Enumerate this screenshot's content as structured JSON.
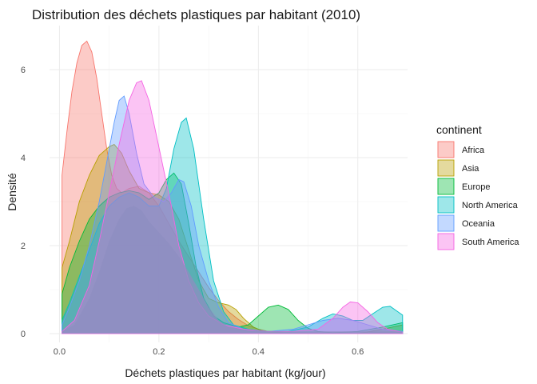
{
  "chart_data": {
    "type": "area",
    "subtype": "density",
    "title": "Distribution des déchets plastiques par habitant (2010)",
    "xlabel": "Déchets plastiques par habitant (kg/jour)",
    "ylabel": "Densité",
    "xlim": [
      -0.02,
      0.7
    ],
    "ylim": [
      -0.2,
      7.0
    ],
    "x_ticks": [
      0.0,
      0.2,
      0.4,
      0.6
    ],
    "x_tick_labels": [
      "0.0",
      "0.2",
      "0.4",
      "0.6"
    ],
    "y_ticks": [
      0,
      2,
      4,
      6
    ],
    "y_tick_labels": [
      "0",
      "2",
      "4",
      "6"
    ],
    "grid": true,
    "legend": {
      "title": "continent",
      "position": "right"
    },
    "series": [
      {
        "name": "Africa",
        "color": "#F8766D",
        "points": [
          [
            0.005,
            3.6
          ],
          [
            0.015,
            4.6
          ],
          [
            0.025,
            5.5
          ],
          [
            0.035,
            6.15
          ],
          [
            0.045,
            6.55
          ],
          [
            0.055,
            6.65
          ],
          [
            0.065,
            6.4
          ],
          [
            0.075,
            5.8
          ],
          [
            0.085,
            5.0
          ],
          [
            0.095,
            4.2
          ],
          [
            0.105,
            3.6
          ],
          [
            0.115,
            3.3
          ],
          [
            0.125,
            3.2
          ],
          [
            0.14,
            3.3
          ],
          [
            0.16,
            3.35
          ],
          [
            0.18,
            3.2
          ],
          [
            0.2,
            2.9
          ],
          [
            0.22,
            2.5
          ],
          [
            0.24,
            2.1
          ],
          [
            0.26,
            1.75
          ],
          [
            0.28,
            1.4
          ],
          [
            0.3,
            1.05
          ],
          [
            0.32,
            0.75
          ],
          [
            0.34,
            0.5
          ],
          [
            0.36,
            0.32
          ],
          [
            0.38,
            0.18
          ],
          [
            0.4,
            0.1
          ],
          [
            0.42,
            0.05
          ],
          [
            0.45,
            0.02
          ],
          [
            0.5,
            0.01
          ],
          [
            0.55,
            0.0
          ],
          [
            0.6,
            0.0
          ],
          [
            0.65,
            0.0
          ],
          [
            0.69,
            0.0
          ]
        ]
      },
      {
        "name": "Asia",
        "color": "#B79F00",
        "points": [
          [
            0.005,
            1.5
          ],
          [
            0.02,
            2.1
          ],
          [
            0.04,
            3.0
          ],
          [
            0.06,
            3.6
          ],
          [
            0.08,
            4.05
          ],
          [
            0.1,
            4.25
          ],
          [
            0.11,
            4.3
          ],
          [
            0.125,
            4.1
          ],
          [
            0.14,
            3.7
          ],
          [
            0.16,
            3.3
          ],
          [
            0.18,
            3.2
          ],
          [
            0.2,
            3.15
          ],
          [
            0.22,
            3.0
          ],
          [
            0.24,
            2.6
          ],
          [
            0.26,
            1.9
          ],
          [
            0.28,
            1.2
          ],
          [
            0.3,
            0.8
          ],
          [
            0.32,
            0.7
          ],
          [
            0.34,
            0.65
          ],
          [
            0.355,
            0.55
          ],
          [
            0.37,
            0.35
          ],
          [
            0.39,
            0.15
          ],
          [
            0.41,
            0.05
          ],
          [
            0.45,
            0.01
          ],
          [
            0.5,
            0.0
          ],
          [
            0.6,
            0.0
          ],
          [
            0.65,
            0.1
          ],
          [
            0.69,
            0.2
          ]
        ]
      },
      {
        "name": "Europe",
        "color": "#00BA38",
        "points": [
          [
            0.005,
            0.9
          ],
          [
            0.02,
            1.5
          ],
          [
            0.04,
            2.1
          ],
          [
            0.06,
            2.6
          ],
          [
            0.08,
            2.9
          ],
          [
            0.1,
            3.1
          ],
          [
            0.12,
            3.2
          ],
          [
            0.14,
            3.25
          ],
          [
            0.16,
            3.2
          ],
          [
            0.18,
            3.05
          ],
          [
            0.2,
            3.2
          ],
          [
            0.215,
            3.5
          ],
          [
            0.23,
            3.65
          ],
          [
            0.245,
            3.4
          ],
          [
            0.26,
            2.5
          ],
          [
            0.275,
            1.5
          ],
          [
            0.29,
            0.8
          ],
          [
            0.31,
            0.4
          ],
          [
            0.33,
            0.25
          ],
          [
            0.36,
            0.15
          ],
          [
            0.38,
            0.2
          ],
          [
            0.4,
            0.4
          ],
          [
            0.42,
            0.6
          ],
          [
            0.44,
            0.65
          ],
          [
            0.46,
            0.55
          ],
          [
            0.48,
            0.3
          ],
          [
            0.5,
            0.12
          ],
          [
            0.52,
            0.05
          ],
          [
            0.55,
            0.02
          ],
          [
            0.6,
            0.05
          ],
          [
            0.65,
            0.15
          ],
          [
            0.69,
            0.25
          ]
        ]
      },
      {
        "name": "North America",
        "color": "#00BFC4",
        "points": [
          [
            0.005,
            0.3
          ],
          [
            0.02,
            0.7
          ],
          [
            0.04,
            1.3
          ],
          [
            0.06,
            1.9
          ],
          [
            0.08,
            2.5
          ],
          [
            0.1,
            2.9
          ],
          [
            0.12,
            3.1
          ],
          [
            0.14,
            3.2
          ],
          [
            0.16,
            3.1
          ],
          [
            0.18,
            2.9
          ],
          [
            0.2,
            2.9
          ],
          [
            0.215,
            3.3
          ],
          [
            0.23,
            4.2
          ],
          [
            0.245,
            4.8
          ],
          [
            0.255,
            4.9
          ],
          [
            0.27,
            4.2
          ],
          [
            0.29,
            2.6
          ],
          [
            0.31,
            1.2
          ],
          [
            0.33,
            0.5
          ],
          [
            0.35,
            0.2
          ],
          [
            0.38,
            0.1
          ],
          [
            0.42,
            0.05
          ],
          [
            0.46,
            0.05
          ],
          [
            0.5,
            0.15
          ],
          [
            0.53,
            0.35
          ],
          [
            0.55,
            0.45
          ],
          [
            0.57,
            0.4
          ],
          [
            0.59,
            0.3
          ],
          [
            0.61,
            0.3
          ],
          [
            0.63,
            0.45
          ],
          [
            0.65,
            0.6
          ],
          [
            0.665,
            0.62
          ],
          [
            0.68,
            0.5
          ],
          [
            0.69,
            0.42
          ]
        ]
      },
      {
        "name": "Oceania",
        "color": "#619CFF",
        "points": [
          [
            0.005,
            0.2
          ],
          [
            0.02,
            0.6
          ],
          [
            0.04,
            1.2
          ],
          [
            0.06,
            2.0
          ],
          [
            0.08,
            3.0
          ],
          [
            0.095,
            3.9
          ],
          [
            0.11,
            4.8
          ],
          [
            0.12,
            5.3
          ],
          [
            0.13,
            5.4
          ],
          [
            0.14,
            5.0
          ],
          [
            0.155,
            4.1
          ],
          [
            0.17,
            3.4
          ],
          [
            0.19,
            3.1
          ],
          [
            0.21,
            3.0
          ],
          [
            0.225,
            3.2
          ],
          [
            0.24,
            3.5
          ],
          [
            0.25,
            3.45
          ],
          [
            0.265,
            2.9
          ],
          [
            0.28,
            2.0
          ],
          [
            0.3,
            1.2
          ],
          [
            0.32,
            0.6
          ],
          [
            0.34,
            0.25
          ],
          [
            0.37,
            0.1
          ],
          [
            0.42,
            0.05
          ],
          [
            0.47,
            0.1
          ],
          [
            0.5,
            0.2
          ],
          [
            0.53,
            0.3
          ],
          [
            0.56,
            0.35
          ],
          [
            0.59,
            0.3
          ],
          [
            0.62,
            0.2
          ],
          [
            0.65,
            0.1
          ],
          [
            0.69,
            0.05
          ]
        ]
      },
      {
        "name": "South America",
        "color": "#F564E3",
        "points": [
          [
            0.005,
            0.05
          ],
          [
            0.03,
            0.3
          ],
          [
            0.06,
            1.1
          ],
          [
            0.08,
            2.1
          ],
          [
            0.1,
            3.2
          ],
          [
            0.12,
            4.3
          ],
          [
            0.14,
            5.3
          ],
          [
            0.155,
            5.7
          ],
          [
            0.165,
            5.75
          ],
          [
            0.18,
            5.3
          ],
          [
            0.195,
            4.5
          ],
          [
            0.21,
            3.7
          ],
          [
            0.225,
            2.9
          ],
          [
            0.24,
            2.0
          ],
          [
            0.26,
            1.2
          ],
          [
            0.28,
            0.7
          ],
          [
            0.3,
            0.4
          ],
          [
            0.33,
            0.2
          ],
          [
            0.37,
            0.1
          ],
          [
            0.42,
            0.05
          ],
          [
            0.47,
            0.05
          ],
          [
            0.52,
            0.1
          ],
          [
            0.55,
            0.35
          ],
          [
            0.57,
            0.6
          ],
          [
            0.585,
            0.72
          ],
          [
            0.6,
            0.7
          ],
          [
            0.62,
            0.5
          ],
          [
            0.64,
            0.25
          ],
          [
            0.66,
            0.1
          ],
          [
            0.69,
            0.03
          ]
        ]
      },
      {
        "name": "",
        "color": "#8E8EC0",
        "points": [
          [
            0.005,
            0.05
          ],
          [
            0.03,
            0.2
          ],
          [
            0.06,
            0.8
          ],
          [
            0.08,
            1.4
          ],
          [
            0.1,
            2.1
          ],
          [
            0.12,
            2.6
          ],
          [
            0.135,
            2.85
          ],
          [
            0.15,
            2.9
          ],
          [
            0.165,
            2.8
          ],
          [
            0.18,
            2.55
          ],
          [
            0.2,
            2.3
          ],
          [
            0.22,
            2.05
          ],
          [
            0.24,
            1.75
          ],
          [
            0.26,
            1.4
          ],
          [
            0.28,
            1.0
          ],
          [
            0.3,
            0.6
          ],
          [
            0.32,
            0.3
          ],
          [
            0.34,
            0.15
          ],
          [
            0.38,
            0.08
          ],
          [
            0.45,
            0.05
          ],
          [
            0.55,
            0.05
          ],
          [
            0.6,
            0.05
          ],
          [
            0.65,
            0.05
          ],
          [
            0.69,
            0.05
          ]
        ]
      }
    ]
  }
}
